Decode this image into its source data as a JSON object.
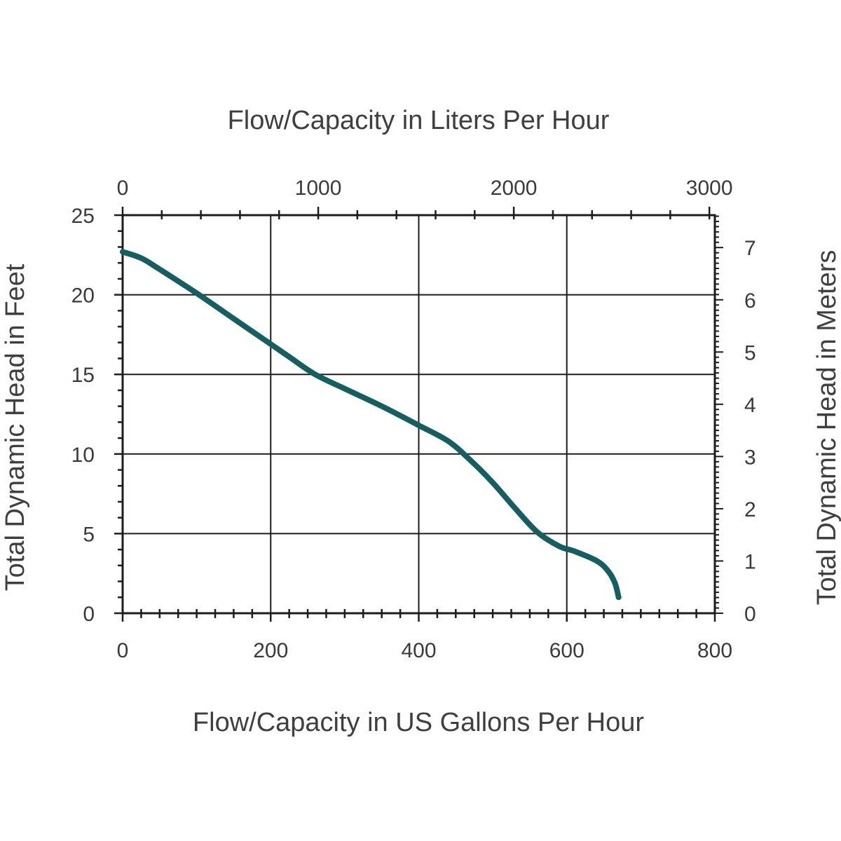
{
  "chart_data": {
    "type": "line",
    "top_xlabel": "Flow/Capacity in Liters Per Hour",
    "xlabel": "Flow/Capacity in US Gallons Per Hour",
    "ylabel": "Total Dynamic Head in Feet",
    "right_ylabel": "Total Dynamic Head in Meters",
    "xlim": [
      0,
      800
    ],
    "ylim": [
      0,
      25
    ],
    "top_xlim": [
      0,
      3028
    ],
    "right_ylim": [
      0,
      7.62
    ],
    "x_ticks": [
      "0",
      "200",
      "400",
      "600",
      "800"
    ],
    "y_ticks": [
      "0",
      "5",
      "10",
      "15",
      "20",
      "25"
    ],
    "top_x_ticks": [
      {
        "value": 0,
        "label": "0"
      },
      {
        "value": 1000,
        "label": "1000"
      },
      {
        "value": 2000,
        "label": "2000"
      },
      {
        "value": 3000,
        "label": "3000"
      }
    ],
    "right_y_ticks": [
      {
        "value": 0,
        "label": "0"
      },
      {
        "value": 1,
        "label": "1"
      },
      {
        "value": 2,
        "label": "2"
      },
      {
        "value": 3,
        "label": "3"
      },
      {
        "value": 4,
        "label": "4"
      },
      {
        "value": 5,
        "label": "5"
      },
      {
        "value": 6,
        "label": "6"
      },
      {
        "value": 7,
        "label": "7"
      }
    ],
    "grid": true,
    "series": [
      {
        "color": "#175e61",
        "x": [
          0,
          25,
          50,
          100,
          150,
          200,
          225,
          260,
          300,
          350,
          400,
          440,
          470,
          500,
          530,
          560,
          590,
          610,
          640,
          655,
          665,
          670
        ],
        "y": [
          22.7,
          22.3,
          21.6,
          20.1,
          18.5,
          16.9,
          16.1,
          15.0,
          14.1,
          13.0,
          11.8,
          10.8,
          9.6,
          8.2,
          6.6,
          5.1,
          4.2,
          3.9,
          3.3,
          2.7,
          1.9,
          1.0
        ]
      }
    ]
  }
}
